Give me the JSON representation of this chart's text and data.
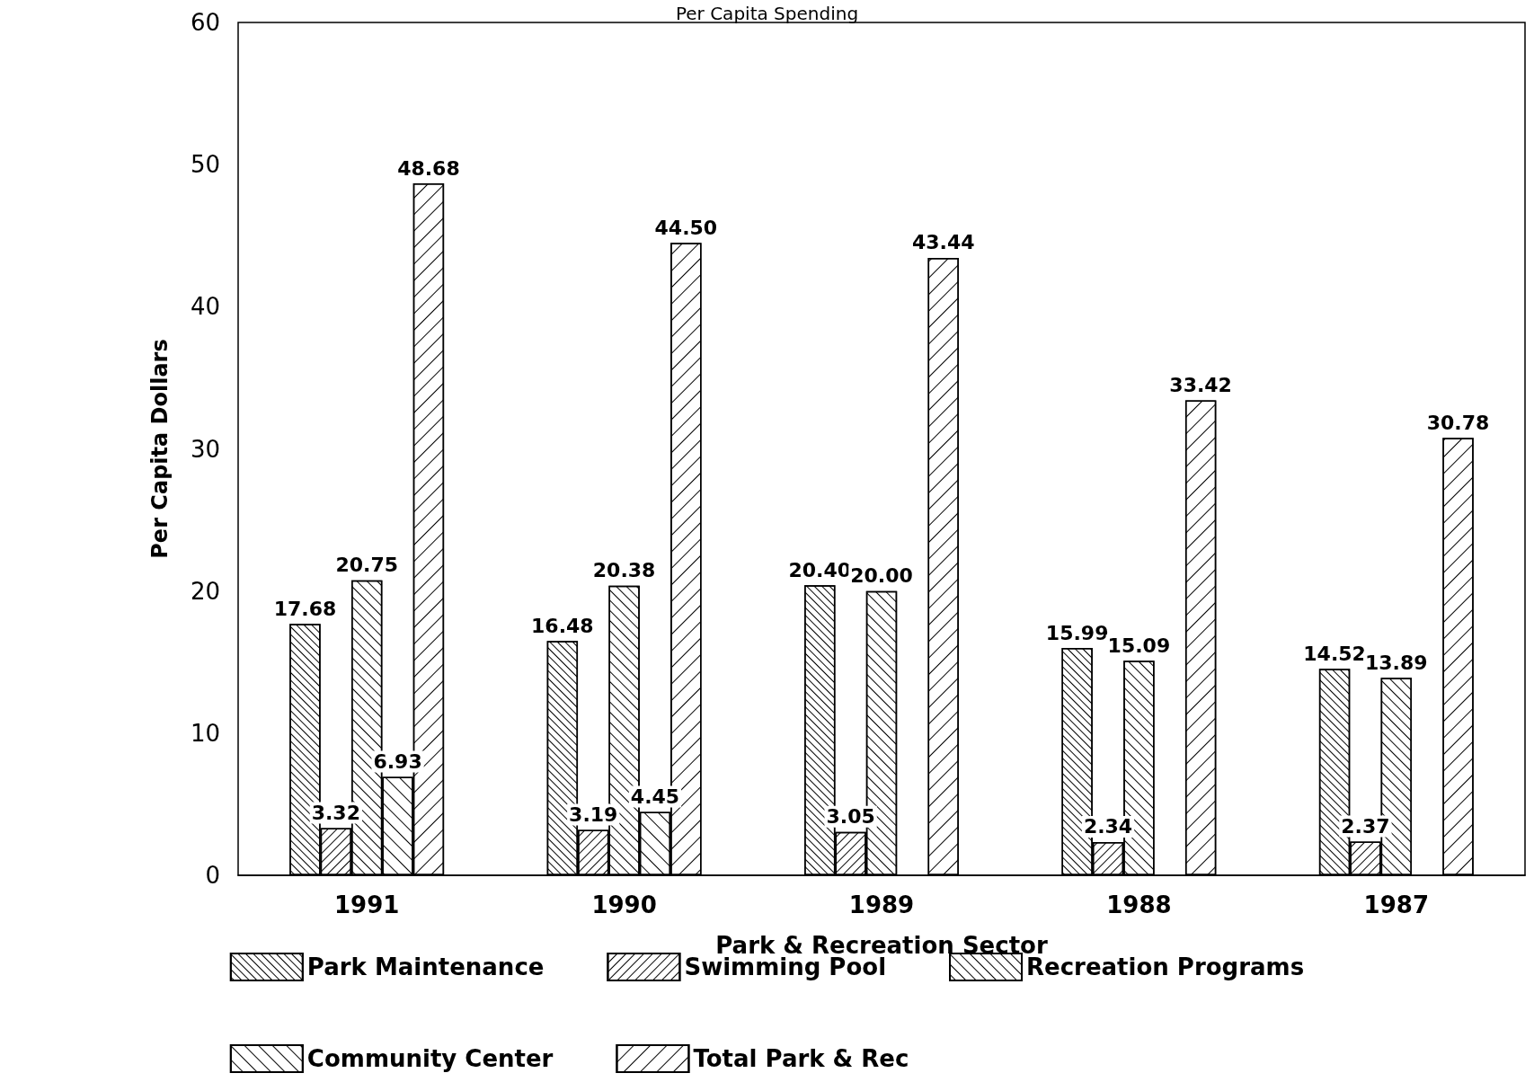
{
  "chart_data": {
    "type": "bar",
    "title": "Per Capita Spending",
    "xlabel": "Park & Recreation Sector",
    "ylabel": "Per Capita Dollars",
    "categories": [
      "1991",
      "1990",
      "1989",
      "1988",
      "1987"
    ],
    "series": [
      {
        "name": "Park Maintenance",
        "color": "#ffffff",
        "values": [
          17.68,
          16.48,
          20.4,
          15.99,
          14.52
        ],
        "value_labels": [
          "17.68",
          "16.48",
          "20.40",
          "15.99",
          "14.52"
        ]
      },
      {
        "name": "Swimming Pool",
        "color": "#ffffff",
        "values": [
          3.32,
          3.19,
          3.05,
          2.34,
          2.37
        ],
        "value_labels": [
          "3.32",
          "3.19",
          "3.05",
          "2.34",
          "2.37"
        ]
      },
      {
        "name": "Recreation Programs",
        "color": "#ffffff",
        "values": [
          20.75,
          20.38,
          20.0,
          15.09,
          13.89
        ],
        "value_labels": [
          "20.75",
          "20.38",
          "20.00",
          "15.09",
          "13.89"
        ]
      },
      {
        "name": "Community Center",
        "color": "#ffffff",
        "values": [
          6.93,
          4.45,
          null,
          null,
          null
        ],
        "value_labels": [
          "6.93",
          "4.45",
          null,
          null,
          null
        ]
      },
      {
        "name": "Total Park & Rec",
        "color": "#ffffff",
        "values": [
          48.68,
          44.5,
          43.44,
          33.42,
          30.78
        ],
        "value_labels": [
          "48.68",
          "44.50",
          "43.44",
          "33.42",
          "30.78"
        ]
      }
    ],
    "ylim": [
      0,
      60
    ],
    "yticks": [
      0,
      10,
      20,
      30,
      40,
      50,
      60
    ],
    "grid": false,
    "legend": "bottom"
  }
}
